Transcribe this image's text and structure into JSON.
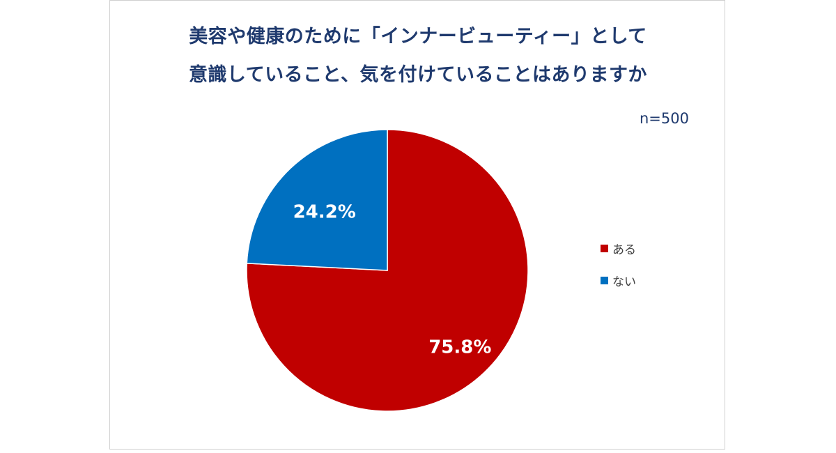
{
  "chart_data": {
    "type": "pie",
    "title_lines": [
      "美容や健康のために「インナービューティー」として",
      "意識していること、気を付けていることはありますか"
    ],
    "note": "n=500",
    "slices": [
      {
        "label": "ある",
        "value": 75.8,
        "display": "75.8%",
        "color": "#c00000"
      },
      {
        "label": "ない",
        "value": 24.2,
        "display": "24.2%",
        "color": "#0070c0"
      }
    ],
    "start": "12 o'clock",
    "direction": "clockwise",
    "legend_position": "right"
  }
}
